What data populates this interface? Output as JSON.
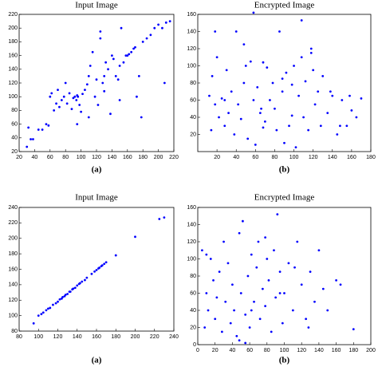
{
  "chart_data": [
    {
      "type": "scatter",
      "title": "Input Image",
      "caption": "(a)",
      "color": "#0000ff",
      "xlim": [
        20,
        220
      ],
      "ylim": [
        20,
        220
      ],
      "xticks": [
        20,
        40,
        60,
        80,
        100,
        120,
        140,
        160,
        180,
        200,
        220
      ],
      "yticks": [
        20,
        40,
        60,
        80,
        100,
        120,
        140,
        160,
        180,
        200,
        220
      ],
      "x": [
        30,
        32,
        35,
        38,
        45,
        50,
        55,
        58,
        60,
        62,
        65,
        68,
        70,
        72,
        75,
        78,
        80,
        82,
        85,
        88,
        90,
        92,
        94,
        95,
        96,
        98,
        100,
        102,
        105,
        108,
        110,
        112,
        115,
        118,
        120,
        122,
        125,
        128,
        130,
        132,
        135,
        138,
        140,
        142,
        145,
        148,
        150,
        152,
        155,
        158,
        160,
        162,
        165,
        168,
        170,
        172,
        175,
        178,
        180,
        185,
        190,
        195,
        200,
        205,
        210,
        208,
        215,
        95,
        110,
        125,
        130,
        150
      ],
      "y": [
        27,
        55,
        38,
        38,
        52,
        52,
        60,
        58,
        100,
        105,
        80,
        90,
        110,
        85,
        95,
        100,
        120,
        90,
        105,
        82,
        98,
        100,
        95,
        102,
        100,
        88,
        78,
        104,
        110,
        118,
        130,
        145,
        165,
        100,
        125,
        88,
        185,
        120,
        130,
        150,
        140,
        75,
        160,
        155,
        130,
        125,
        145,
        200,
        150,
        160,
        160,
        162,
        165,
        170,
        172,
        100,
        130,
        70,
        180,
        185,
        190,
        200,
        205,
        200,
        208,
        120,
        210,
        60,
        70,
        195,
        108,
        95
      ]
    },
    {
      "type": "scatter",
      "title": "Encrypted Image",
      "caption": "(b)",
      "color": "#0000ff",
      "xlim": [
        0,
        180
      ],
      "ylim": [
        0,
        160
      ],
      "xticks": [
        20,
        40,
        60,
        80,
        100,
        120,
        140,
        160,
        180
      ],
      "yticks": [
        20,
        40,
        60,
        80,
        100,
        120,
        140,
        160
      ],
      "x": [
        12,
        14,
        15,
        18,
        20,
        22,
        25,
        28,
        30,
        32,
        35,
        38,
        40,
        42,
        45,
        48,
        50,
        52,
        55,
        58,
        60,
        62,
        65,
        68,
        70,
        72,
        75,
        78,
        80,
        82,
        85,
        88,
        90,
        92,
        95,
        98,
        100,
        102,
        105,
        108,
        110,
        112,
        115,
        118,
        120,
        122,
        125,
        128,
        130,
        135,
        140,
        145,
        150,
        155,
        160,
        165,
        170,
        18,
        28,
        48,
        58,
        68,
        88,
        98,
        108,
        118,
        138,
        148,
        158,
        66
      ],
      "y": [
        65,
        25,
        88,
        55,
        110,
        40,
        62,
        30,
        95,
        45,
        70,
        20,
        140,
        55,
        38,
        80,
        100,
        15,
        105,
        60,
        8,
        75,
        45,
        104,
        35,
        98,
        60,
        80,
        50,
        25,
        140,
        70,
        10,
        92,
        30,
        78,
        100,
        5,
        65,
        153,
        40,
        82,
        25,
        120,
        95,
        55,
        70,
        30,
        88,
        45,
        65,
        20,
        60,
        30,
        48,
        40,
        62,
        140,
        60,
        125,
        162,
        28,
        85,
        42,
        110,
        115,
        70,
        30,
        65,
        50
      ]
    },
    {
      "type": "scatter",
      "title": "Input Image",
      "caption": "(a)",
      "color": "#0000ff",
      "xlim": [
        80,
        240
      ],
      "ylim": [
        80,
        240
      ],
      "xticks": [
        80,
        100,
        120,
        140,
        160,
        180,
        200,
        220,
        240
      ],
      "yticks": [
        80,
        100,
        120,
        140,
        160,
        180,
        200,
        220,
        240
      ],
      "x": [
        95,
        100,
        103,
        105,
        108,
        110,
        112,
        115,
        118,
        120,
        122,
        124,
        125,
        127,
        128,
        130,
        132,
        133,
        135,
        136,
        138,
        140,
        142,
        143,
        145,
        148,
        150,
        155,
        158,
        160,
        162,
        163,
        165,
        166,
        168,
        170,
        180,
        200,
        225,
        230
      ],
      "y": [
        90,
        100,
        102,
        104,
        107,
        109,
        110,
        114,
        116,
        118,
        121,
        122,
        124,
        125,
        127,
        128,
        131,
        131,
        134,
        135,
        136,
        139,
        141,
        142,
        144,
        146,
        149,
        154,
        157,
        159,
        161,
        162,
        164,
        165,
        167,
        169,
        178,
        202,
        225,
        227
      ]
    },
    {
      "type": "scatter",
      "title": "Encrypted Image",
      "caption": "(b)",
      "color": "#0000ff",
      "xlim": [
        0,
        200
      ],
      "ylim": [
        0,
        160
      ],
      "xticks": [
        0,
        20,
        40,
        60,
        80,
        100,
        120,
        140,
        160,
        180,
        200
      ],
      "yticks": [
        0,
        20,
        40,
        60,
        80,
        100,
        120,
        140,
        160
      ],
      "x": [
        5,
        8,
        10,
        12,
        15,
        18,
        20,
        22,
        25,
        28,
        30,
        32,
        35,
        38,
        40,
        42,
        45,
        48,
        50,
        52,
        55,
        58,
        60,
        62,
        65,
        68,
        70,
        72,
        75,
        78,
        80,
        82,
        85,
        88,
        90,
        92,
        95,
        98,
        100,
        105,
        110,
        115,
        120,
        125,
        130,
        135,
        140,
        145,
        150,
        160,
        165,
        180,
        48,
        62,
        78,
        95,
        112,
        128,
        10,
        55
      ],
      "y": [
        110,
        20,
        60,
        40,
        100,
        75,
        30,
        55,
        85,
        15,
        120,
        50,
        95,
        25,
        70,
        40,
        10,
        130,
        60,
        144,
        35,
        80,
        20,
        105,
        50,
        90,
        120,
        30,
        65,
        45,
        100,
        75,
        15,
        110,
        55,
        152,
        85,
        25,
        60,
        95,
        40,
        120,
        70,
        30,
        85,
        50,
        110,
        65,
        40,
        75,
        70,
        18,
        5,
        40,
        125,
        60,
        90,
        20,
        105,
        2
      ]
    }
  ]
}
